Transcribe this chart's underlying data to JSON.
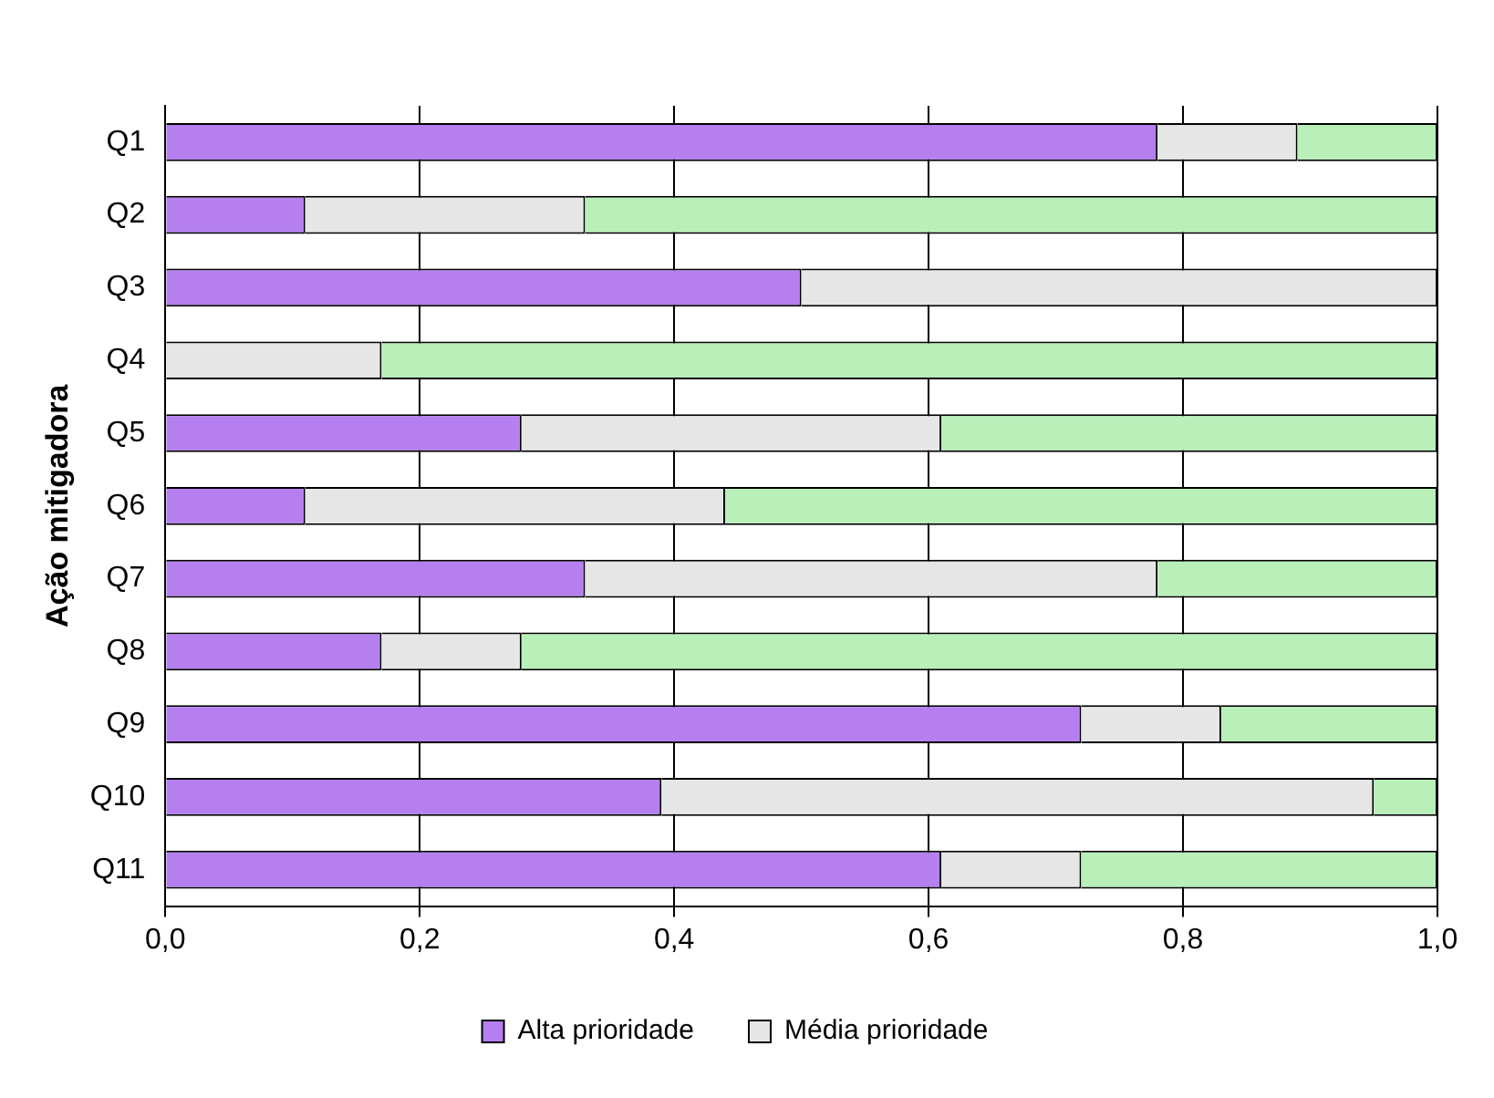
{
  "chart_data": {
    "type": "bar",
    "orientation": "horizontal",
    "stacked": true,
    "ylabel": "Ação mitigadora",
    "categories": [
      "Q1",
      "Q2",
      "Q3",
      "Q4",
      "Q5",
      "Q6",
      "Q7",
      "Q8",
      "Q9",
      "Q10",
      "Q11"
    ],
    "series": [
      {
        "name": "Alta prioridade",
        "color": "#b57ff0",
        "values": [
          0.78,
          0.11,
          0.5,
          0,
          0.28,
          0.11,
          0.33,
          0.17,
          0.72,
          0.39,
          0.61
        ]
      },
      {
        "name": "Média prioridade",
        "color": "#e6e6e6",
        "values": [
          0.11,
          0.22,
          0.5,
          0.17,
          0.33,
          0.33,
          0.45,
          0.11,
          0.11,
          0.56,
          0.11
        ]
      },
      {
        "color": "#b9f0b9",
        "values": [
          0.11,
          0.67,
          0,
          0.83,
          0.39,
          0.56,
          0.22,
          0.72,
          0.17,
          0.05,
          0.28
        ]
      }
    ],
    "xlim": [
      0,
      1
    ],
    "xticks": [
      {
        "value": 0,
        "label": "0,0"
      },
      {
        "value": 0.2,
        "label": "0,2"
      },
      {
        "value": 0.4,
        "label": "0,4"
      },
      {
        "value": 0.6,
        "label": "0,6"
      },
      {
        "value": 0.8,
        "label": "0,8"
      },
      {
        "value": 1,
        "label": "1,0"
      }
    ],
    "grid": "x",
    "legend": "bottom"
  }
}
